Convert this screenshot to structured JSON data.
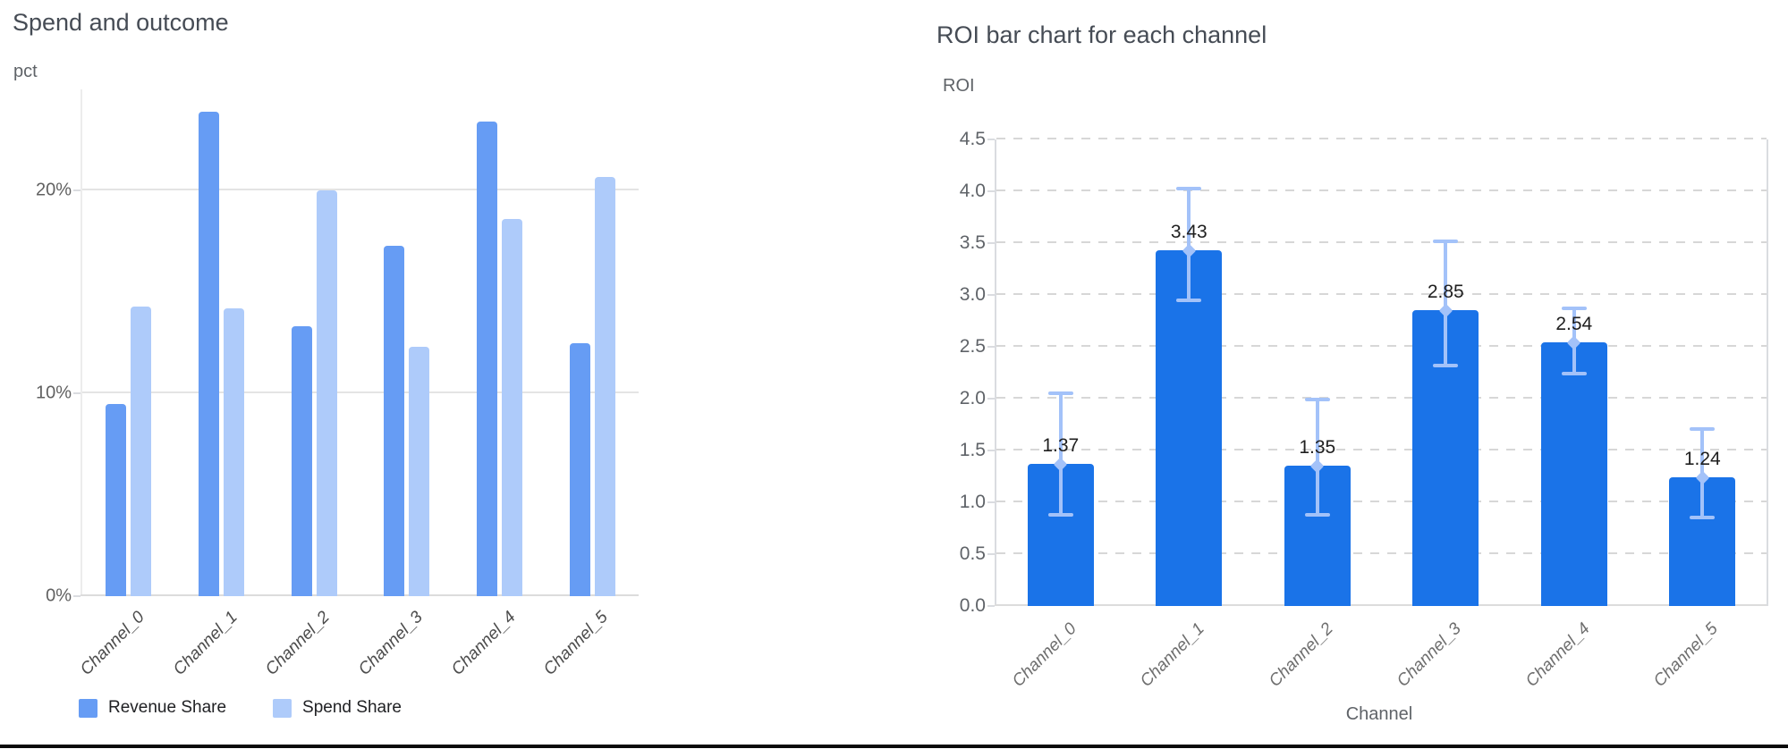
{
  "chart_data": [
    {
      "type": "bar",
      "title": "Spend and outcome",
      "ylabel": "pct",
      "xlabel": "",
      "categories": [
        "Channel_0",
        "Channel_1",
        "Channel_2",
        "Channel_3",
        "Channel_4",
        "Channel_5"
      ],
      "series": [
        {
          "name": "Revenue Share",
          "color": "#669cf4",
          "values": [
            9.5,
            23.9,
            13.3,
            17.3,
            23.4,
            12.5
          ]
        },
        {
          "name": "Spend Share",
          "color": "#aecbfa",
          "values": [
            14.3,
            14.2,
            20.0,
            12.3,
            18.6,
            20.7
          ]
        }
      ],
      "ylim": [
        0,
        25
      ],
      "yticks": [
        {
          "value": 0,
          "label": "0%"
        },
        {
          "value": 10,
          "label": "10%"
        },
        {
          "value": 20,
          "label": "20%"
        }
      ],
      "grid": "solid",
      "legend_position": "bottom-left"
    },
    {
      "type": "bar",
      "title": "ROI bar chart for each channel",
      "ylabel": "ROI",
      "xlabel": "Channel",
      "categories": [
        "Channel_0",
        "Channel_1",
        "Channel_2",
        "Channel_3",
        "Channel_4",
        "Channel_5"
      ],
      "series": [
        {
          "name": "ROI",
          "color": "#1a73e8",
          "values": [
            1.37,
            3.43,
            1.35,
            2.85,
            2.54,
            1.24
          ]
        }
      ],
      "value_labels": [
        "1.37",
        "3.43",
        "1.35",
        "2.85",
        "2.54",
        "1.24"
      ],
      "error_bars": {
        "color": "#a3c2f9",
        "lower": [
          0.88,
          2.95,
          0.88,
          2.32,
          2.24,
          0.85
        ],
        "upper": [
          2.05,
          4.03,
          1.99,
          3.52,
          2.87,
          1.71
        ]
      },
      "ylim": [
        0,
        4.5
      ],
      "ytick_step": 0.5,
      "grid": "dashed",
      "legend_position": "none"
    }
  ]
}
